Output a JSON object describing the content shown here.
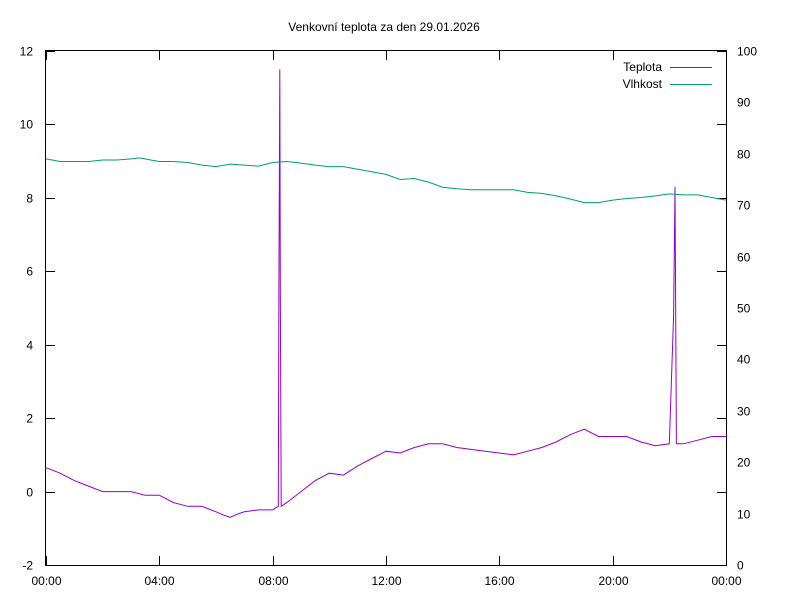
{
  "chart_data": {
    "type": "line",
    "title": "Venkovní teplota za den 29.01.2026",
    "xlabel": "",
    "ylabel": "",
    "y2label": "",
    "grid": false,
    "legend_position": "top-right",
    "x_ticks": [
      "00:00",
      "04:00",
      "08:00",
      "12:00",
      "16:00",
      "20:00",
      "00:00"
    ],
    "y_ticks": [
      -2,
      0,
      2,
      4,
      6,
      8,
      10,
      12
    ],
    "y2_ticks": [
      0,
      10,
      20,
      30,
      40,
      50,
      60,
      70,
      80,
      90,
      100
    ],
    "xlim_hours": [
      0,
      24
    ],
    "ylim": [
      -2,
      12
    ],
    "y2lim": [
      0,
      100
    ],
    "series": [
      {
        "name": "Teplota",
        "axis": "y",
        "color": "#9400d3",
        "x_hours": [
          0,
          0.5,
          1,
          1.5,
          2,
          2.5,
          3,
          3.5,
          4,
          4.5,
          5,
          5.5,
          6,
          6.3,
          6.5,
          6.8,
          7,
          7.5,
          8,
          8.2,
          8.22,
          8.25,
          8.27,
          8.3,
          8.5,
          9,
          9.5,
          10,
          10.5,
          11,
          11.5,
          12,
          12.5,
          13,
          13.5,
          14,
          14.5,
          15,
          15.5,
          16,
          16.5,
          17,
          17.5,
          18,
          18.5,
          19,
          19.5,
          20,
          20.5,
          21,
          21.5,
          22,
          22.15,
          22.2,
          22.25,
          22.3,
          22.5,
          23,
          23.5,
          24
        ],
        "values": [
          0.65,
          0.5,
          0.3,
          0.15,
          0.0,
          0.0,
          0.0,
          -0.1,
          -0.1,
          -0.3,
          -0.4,
          -0.4,
          -0.55,
          -0.65,
          -0.7,
          -0.6,
          -0.55,
          -0.5,
          -0.5,
          -0.4,
          5.5,
          11.5,
          5.5,
          -0.4,
          -0.3,
          0.0,
          0.3,
          0.5,
          0.45,
          0.7,
          0.9,
          1.1,
          1.05,
          1.2,
          1.3,
          1.3,
          1.2,
          1.15,
          1.1,
          1.05,
          1.0,
          1.1,
          1.2,
          1.35,
          1.55,
          1.7,
          1.5,
          1.5,
          1.5,
          1.35,
          1.25,
          1.3,
          4.8,
          8.3,
          1.3,
          1.3,
          1.3,
          1.4,
          1.5,
          1.5
        ]
      },
      {
        "name": "Vlhkost",
        "axis": "y2",
        "color": "#009e73",
        "x_hours": [
          0,
          0.5,
          1,
          1.5,
          2,
          2.5,
          3,
          3.3,
          3.7,
          4,
          4.5,
          5,
          5.5,
          6,
          6.5,
          7,
          7.5,
          8,
          8.5,
          9,
          9.5,
          10,
          10.5,
          11,
          11.5,
          12,
          12.5,
          13,
          13.5,
          14,
          14.5,
          15,
          15.5,
          16,
          16.5,
          17,
          17.5,
          18,
          18.5,
          19,
          19.5,
          20,
          20.5,
          21,
          21.5,
          22,
          22.5,
          23,
          23.5,
          24
        ],
        "values": [
          79,
          78.5,
          78.5,
          78.5,
          78.8,
          78.8,
          79,
          79.2,
          78.8,
          78.5,
          78.5,
          78.3,
          77.8,
          77.5,
          78,
          77.8,
          77.6,
          78.3,
          78.5,
          78.2,
          77.8,
          77.5,
          77.5,
          77,
          76.5,
          76,
          75,
          75.2,
          74.5,
          73.5,
          73.2,
          73,
          73,
          73,
          73,
          72.5,
          72.3,
          71.8,
          71.2,
          70.5,
          70.5,
          71,
          71.3,
          71.5,
          71.8,
          72.2,
          72,
          72,
          71.5,
          71
        ]
      }
    ]
  }
}
